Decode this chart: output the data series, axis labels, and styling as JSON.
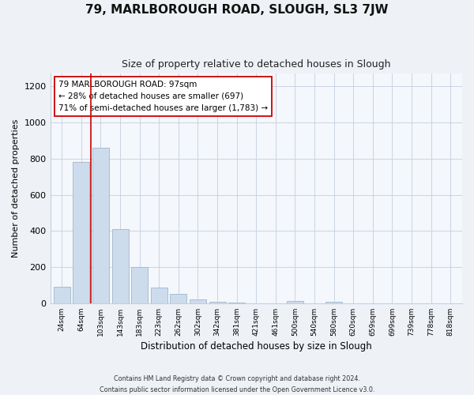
{
  "title": "79, MARLBOROUGH ROAD, SLOUGH, SL3 7JW",
  "subtitle": "Size of property relative to detached houses in Slough",
  "xlabel": "Distribution of detached houses by size in Slough",
  "ylabel": "Number of detached properties",
  "bar_labels": [
    "24sqm",
    "64sqm",
    "103sqm",
    "143sqm",
    "183sqm",
    "223sqm",
    "262sqm",
    "302sqm",
    "342sqm",
    "381sqm",
    "421sqm",
    "461sqm",
    "500sqm",
    "540sqm",
    "580sqm",
    "620sqm",
    "659sqm",
    "699sqm",
    "739sqm",
    "778sqm",
    "818sqm"
  ],
  "bar_values": [
    90,
    780,
    860,
    410,
    200,
    85,
    53,
    23,
    10,
    3,
    0,
    0,
    12,
    0,
    8,
    0,
    0,
    0,
    0,
    0,
    0
  ],
  "bar_color": "#cddcec",
  "bar_edge_color": "#aabcd0",
  "vline_color": "#cc0000",
  "annotation_text_line1": "79 MARLBOROUGH ROAD: 97sqm",
  "annotation_text_line2": "← 28% of detached houses are smaller (697)",
  "annotation_text_line3": "71% of semi-detached houses are larger (1,783) →",
  "annotation_box_color": "white",
  "annotation_box_edge": "#cc0000",
  "ylim": [
    0,
    1270
  ],
  "yticks": [
    0,
    200,
    400,
    600,
    800,
    1000,
    1200
  ],
  "footer_line1": "Contains HM Land Registry data © Crown copyright and database right 2024.",
  "footer_line2": "Contains public sector information licensed under the Open Government Licence v3.0.",
  "bg_color": "#eef2f7",
  "plot_bg_color": "#f4f7fb",
  "grid_color": "#c5cfe0"
}
